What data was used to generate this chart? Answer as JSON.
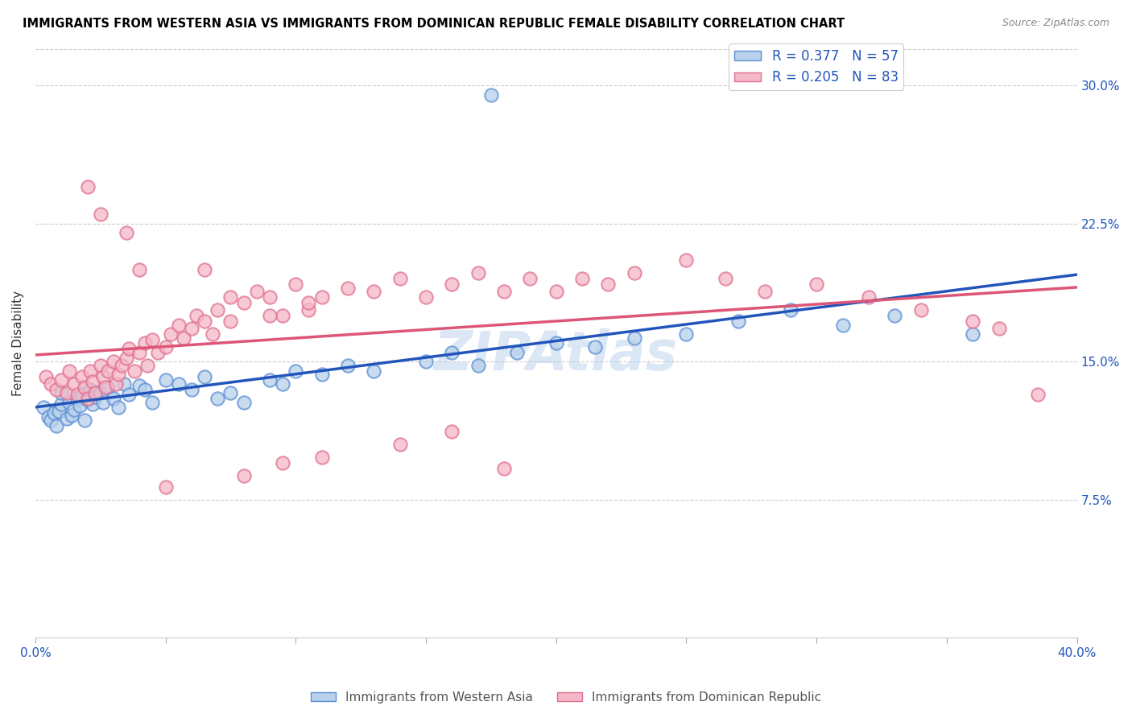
{
  "title": "IMMIGRANTS FROM WESTERN ASIA VS IMMIGRANTS FROM DOMINICAN REPUBLIC FEMALE DISABILITY CORRELATION CHART",
  "source": "Source: ZipAtlas.com",
  "ylabel": "Female Disability",
  "xlim": [
    0.0,
    0.4
  ],
  "ylim": [
    0.0,
    0.32
  ],
  "yticks": [
    0.075,
    0.15,
    0.225,
    0.3
  ],
  "ytick_labels": [
    "7.5%",
    "15.0%",
    "22.5%",
    "30.0%"
  ],
  "R_blue": 0.377,
  "N_blue": 57,
  "R_pink": 0.205,
  "N_pink": 83,
  "blue_face_color": "#b8d0ea",
  "pink_face_color": "#f5b8c8",
  "blue_edge_color": "#5b8fd4",
  "pink_edge_color": "#e07090",
  "blue_line_color": "#2255bb",
  "pink_line_color": "#dd5577",
  "watermark": "ZIPAtlas",
  "watermark_color": "#b8d0ea",
  "legend_label_blue": "Immigrants from Western Asia",
  "legend_label_pink": "Immigrants from Dominican Republic",
  "blue_x": [
    0.003,
    0.005,
    0.006,
    0.007,
    0.008,
    0.009,
    0.01,
    0.01,
    0.012,
    0.013,
    0.014,
    0.015,
    0.016,
    0.017,
    0.018,
    0.019,
    0.02,
    0.021,
    0.022,
    0.023,
    0.025,
    0.026,
    0.028,
    0.03,
    0.032,
    0.034,
    0.036,
    0.04,
    0.042,
    0.045,
    0.05,
    0.055,
    0.06,
    0.065,
    0.07,
    0.075,
    0.08,
    0.09,
    0.095,
    0.1,
    0.11,
    0.12,
    0.13,
    0.15,
    0.16,
    0.17,
    0.185,
    0.2,
    0.215,
    0.23,
    0.25,
    0.27,
    0.29,
    0.31,
    0.33,
    0.36,
    0.175
  ],
  "blue_y": [
    0.125,
    0.12,
    0.118,
    0.122,
    0.115,
    0.123,
    0.127,
    0.133,
    0.119,
    0.128,
    0.121,
    0.124,
    0.13,
    0.126,
    0.132,
    0.118,
    0.129,
    0.135,
    0.127,
    0.131,
    0.133,
    0.128,
    0.136,
    0.13,
    0.125,
    0.138,
    0.132,
    0.137,
    0.135,
    0.128,
    0.14,
    0.138,
    0.135,
    0.142,
    0.13,
    0.133,
    0.128,
    0.14,
    0.138,
    0.145,
    0.143,
    0.148,
    0.145,
    0.15,
    0.155,
    0.148,
    0.155,
    0.16,
    0.158,
    0.163,
    0.165,
    0.172,
    0.178,
    0.17,
    0.175,
    0.165,
    0.295
  ],
  "pink_x": [
    0.004,
    0.006,
    0.008,
    0.01,
    0.012,
    0.013,
    0.015,
    0.016,
    0.018,
    0.019,
    0.02,
    0.021,
    0.022,
    0.023,
    0.025,
    0.026,
    0.027,
    0.028,
    0.03,
    0.031,
    0.032,
    0.033,
    0.035,
    0.036,
    0.038,
    0.04,
    0.042,
    0.043,
    0.045,
    0.047,
    0.05,
    0.052,
    0.055,
    0.057,
    0.06,
    0.062,
    0.065,
    0.068,
    0.07,
    0.075,
    0.08,
    0.085,
    0.09,
    0.095,
    0.1,
    0.105,
    0.11,
    0.12,
    0.13,
    0.14,
    0.15,
    0.16,
    0.17,
    0.18,
    0.19,
    0.2,
    0.21,
    0.22,
    0.23,
    0.25,
    0.265,
    0.28,
    0.3,
    0.32,
    0.34,
    0.36,
    0.37,
    0.385,
    0.05,
    0.08,
    0.095,
    0.11,
    0.14,
    0.16,
    0.18,
    0.04,
    0.035,
    0.025,
    0.02,
    0.065,
    0.075,
    0.09,
    0.105
  ],
  "pink_y": [
    0.142,
    0.138,
    0.135,
    0.14,
    0.133,
    0.145,
    0.138,
    0.132,
    0.142,
    0.136,
    0.13,
    0.145,
    0.139,
    0.133,
    0.148,
    0.142,
    0.136,
    0.145,
    0.15,
    0.138,
    0.143,
    0.148,
    0.152,
    0.157,
    0.145,
    0.155,
    0.16,
    0.148,
    0.162,
    0.155,
    0.158,
    0.165,
    0.17,
    0.163,
    0.168,
    0.175,
    0.172,
    0.165,
    0.178,
    0.172,
    0.182,
    0.188,
    0.185,
    0.175,
    0.192,
    0.178,
    0.185,
    0.19,
    0.188,
    0.195,
    0.185,
    0.192,
    0.198,
    0.188,
    0.195,
    0.188,
    0.195,
    0.192,
    0.198,
    0.205,
    0.195,
    0.188,
    0.192,
    0.185,
    0.178,
    0.172,
    0.168,
    0.132,
    0.082,
    0.088,
    0.095,
    0.098,
    0.105,
    0.112,
    0.092,
    0.2,
    0.22,
    0.23,
    0.245,
    0.2,
    0.185,
    0.175,
    0.182
  ]
}
